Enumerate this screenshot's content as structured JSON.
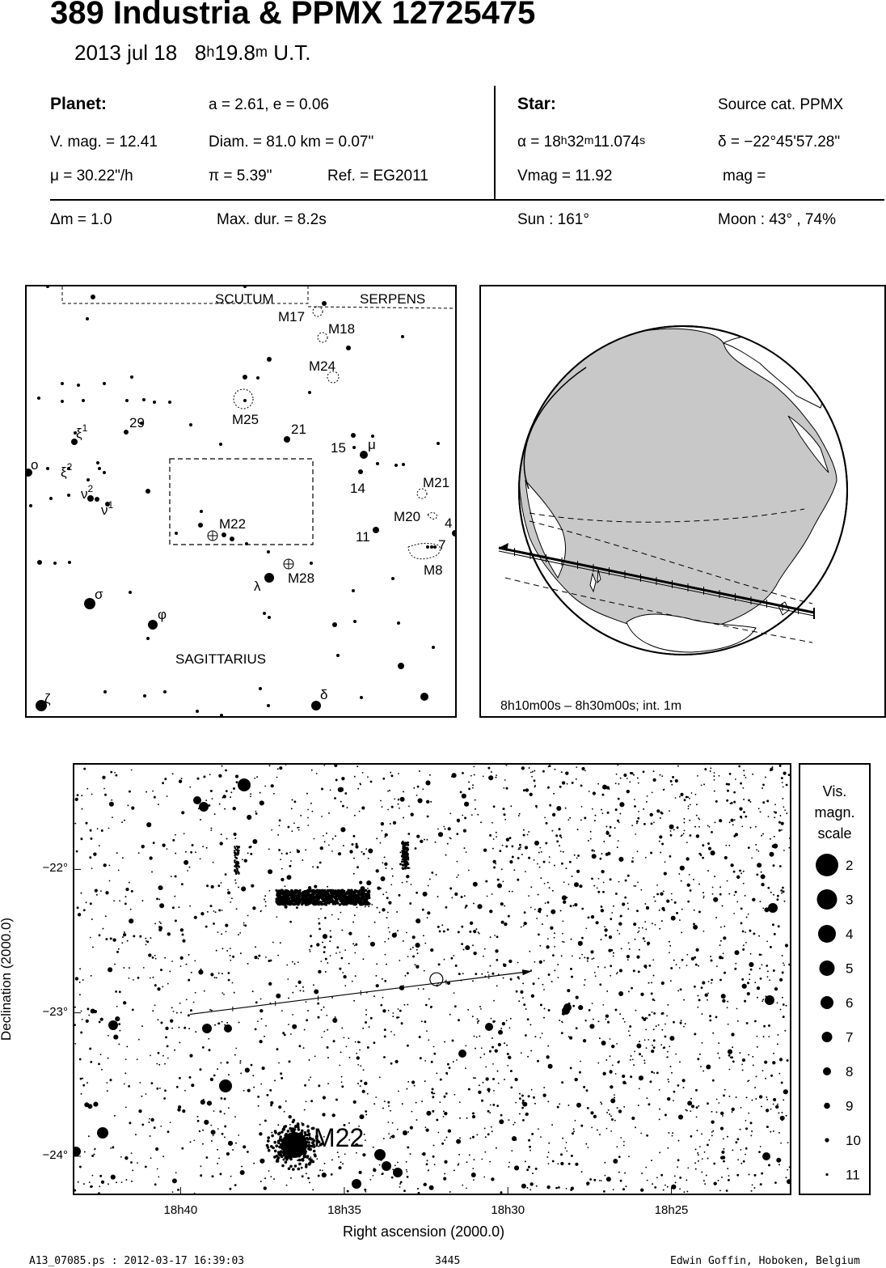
{
  "header": {
    "title": "389 Industria  &  PPMX 12725475",
    "date": "2013 jul 18",
    "time_h": "8",
    "time_h_unit": "h",
    "time_m": "19.8",
    "time_m_unit": "m",
    "time_suffix": "U.T."
  },
  "planet": {
    "heading": "Planet:",
    "orbit": "a = 2.61, e = 0.06",
    "vmag": "V. mag. = 12.41",
    "diam": "Diam. = 81.0 km = 0.07\"",
    "mu": "μ =  30.22\"/h",
    "parallax": "π =  5.39\"",
    "ref": "Ref. = EG2011"
  },
  "star": {
    "heading": "Star:",
    "source": "Source cat.  PPMX",
    "ra_prefix": "α = 18",
    "ra_h": "h",
    "ra_mid": "32",
    "ra_m": "m",
    "ra_sec": "11.074",
    "ra_s": "s",
    "dec": "δ = −22°45'57.28\"",
    "vmag": "Vmag = 11.92",
    "mag": "mag ="
  },
  "event": {
    "dm": "Δm = 1.0",
    "maxdur": "Max. dur. = 8.2s",
    "sun": "Sun : 161°",
    "moon": "Moon :  43° , 74%"
  },
  "finder": {
    "constellations": [
      "SCUTUM",
      "SERPENS",
      "SAGITTARIUS"
    ],
    "objects": [
      "M17",
      "M18",
      "M24",
      "M25",
      "M22",
      "M28",
      "M21",
      "M20",
      "M8"
    ],
    "star_labels": [
      "29",
      "21",
      "15",
      "14",
      "11",
      "4",
      "7",
      "ξ",
      "1",
      "2",
      "ν",
      "ο",
      "σ",
      "φ",
      "λ",
      "μ",
      "δ",
      "ζ"
    ]
  },
  "globe": {
    "caption": "8h10m00s –  8h30m00s; int.  1m"
  },
  "chart_data": {
    "type": "scatter",
    "title": "",
    "xlabel": "Right ascension (2000.0)",
    "ylabel": "Declination (2000.0)",
    "x_ticks": [
      "18h40",
      "18h35",
      "18h30",
      "18h25"
    ],
    "y_ticks": [
      "−22°",
      "−23°",
      "−24°"
    ],
    "x_tick_hours": [
      18.6667,
      18.5833,
      18.5,
      18.4167
    ],
    "y_tick_deg": [
      -22,
      -23,
      -24
    ],
    "xlim_hours": [
      18.7208,
      18.3564
    ],
    "ylim_deg": [
      -24.26,
      -21.27
    ],
    "object_label": "M22",
    "path_start": [
      18.6619,
      -23.01
    ],
    "path_end": [
      18.4879,
      -22.71
    ],
    "target_star": [
      18.5364,
      -22.766
    ]
  },
  "legend": {
    "title_lines": [
      "Vis.",
      "magn.",
      "scale"
    ],
    "magnitudes": [
      "2",
      "3",
      "4",
      "5",
      "6",
      "7",
      "8",
      "9",
      "10",
      "11"
    ]
  },
  "footer": {
    "left": "A13_07085.ps : 2012-03-17 16:39:03",
    "center": "3445",
    "right": "Edwin Goffin, Hoboken, Belgium"
  }
}
